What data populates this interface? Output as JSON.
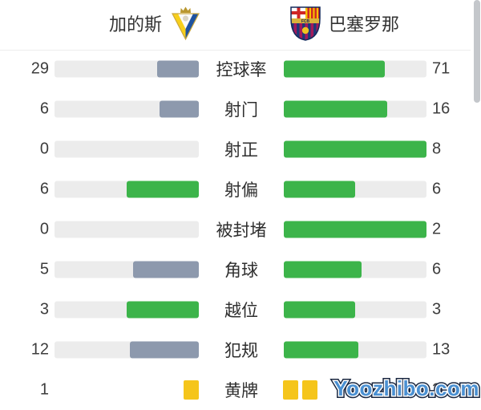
{
  "teams": {
    "home": {
      "name": "加的斯"
    },
    "away": {
      "name": "巴塞罗那"
    }
  },
  "stats": [
    {
      "label": "控球率",
      "home": "29",
      "away": "71"
    },
    {
      "label": "射门",
      "home": "6",
      "away": "16"
    },
    {
      "label": "射正",
      "home": "0",
      "away": "8"
    },
    {
      "label": "射偏",
      "home": "6",
      "away": "6"
    },
    {
      "label": "被封堵",
      "home": "0",
      "away": "2"
    },
    {
      "label": "角球",
      "home": "5",
      "away": "6"
    },
    {
      "label": "越位",
      "home": "3",
      "away": "3"
    },
    {
      "label": "犯规",
      "home": "12",
      "away": "13"
    }
  ],
  "cards": {
    "label": "黄牌",
    "home": 1,
    "away": 2
  },
  "watermark": "Yoozhibo.com",
  "colors": {
    "winner_green": "#3cb44a",
    "loser_gray_blue": "#8d99ad",
    "bar_track": "#ececec",
    "yellow_card": "#f5c51b",
    "watermark_blue": "#4a90d2"
  }
}
